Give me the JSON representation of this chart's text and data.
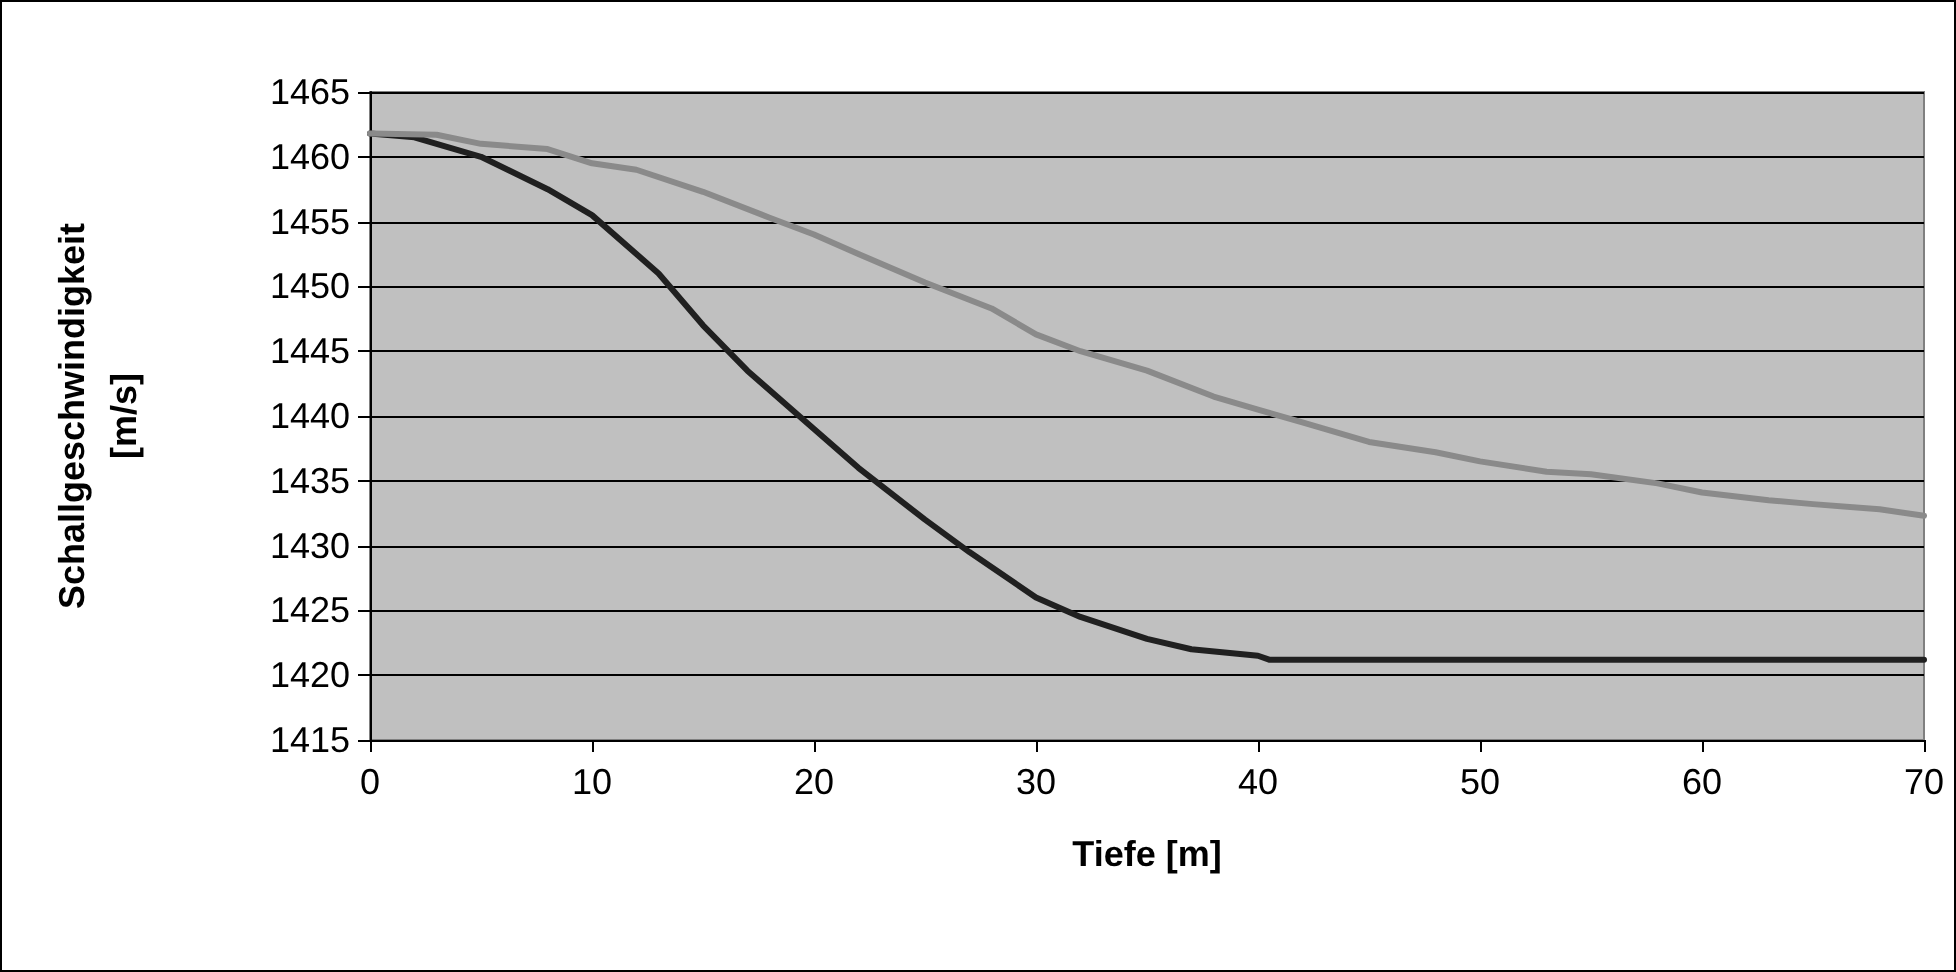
{
  "chart_data": {
    "type": "line",
    "xlabel": "Tiefe [m]",
    "ylabel": "Schallgeschwindigkeit\n[m/s]",
    "xlim": [
      0,
      70
    ],
    "xticks": [
      0,
      10,
      20,
      30,
      40,
      50,
      60,
      70
    ],
    "ylim": [
      1415,
      1465
    ],
    "yticks": [
      1415,
      1420,
      1425,
      1430,
      1435,
      1440,
      1445,
      1450,
      1455,
      1460,
      1465
    ],
    "grid": "y",
    "marker": "none",
    "line_style": "solid",
    "series": [
      {
        "color": "#202020",
        "x": [
          0,
          2,
          5,
          8,
          10,
          12,
          13,
          15,
          17,
          20,
          22,
          25,
          27,
          30,
          32,
          35,
          37,
          40,
          40.5,
          70
        ],
        "values": [
          1461.8,
          1461.5,
          1460,
          1457.5,
          1455.5,
          1452.5,
          1451,
          1447,
          1443.5,
          1439,
          1436,
          1432,
          1429.5,
          1426,
          1424.5,
          1422.8,
          1422,
          1421.5,
          1421.2,
          1421.2
        ]
      },
      {
        "color": "#8a8a8a",
        "x": [
          0,
          3,
          5,
          8,
          10,
          12,
          15,
          18,
          20,
          22,
          25,
          28,
          30,
          32,
          35,
          38,
          40,
          42,
          45,
          48,
          50,
          53,
          55,
          58,
          60,
          63,
          65,
          68,
          70
        ],
        "values": [
          1461.8,
          1461.7,
          1461,
          1460.6,
          1459.5,
          1459,
          1457.3,
          1455.3,
          1454,
          1452.5,
          1450.3,
          1448.3,
          1446.3,
          1445,
          1443.5,
          1441.5,
          1440.5,
          1439.5,
          1438,
          1437.2,
          1436.5,
          1435.7,
          1435.5,
          1434.8,
          1434.1,
          1433.5,
          1433.2,
          1432.8,
          1432.3
        ]
      }
    ]
  }
}
